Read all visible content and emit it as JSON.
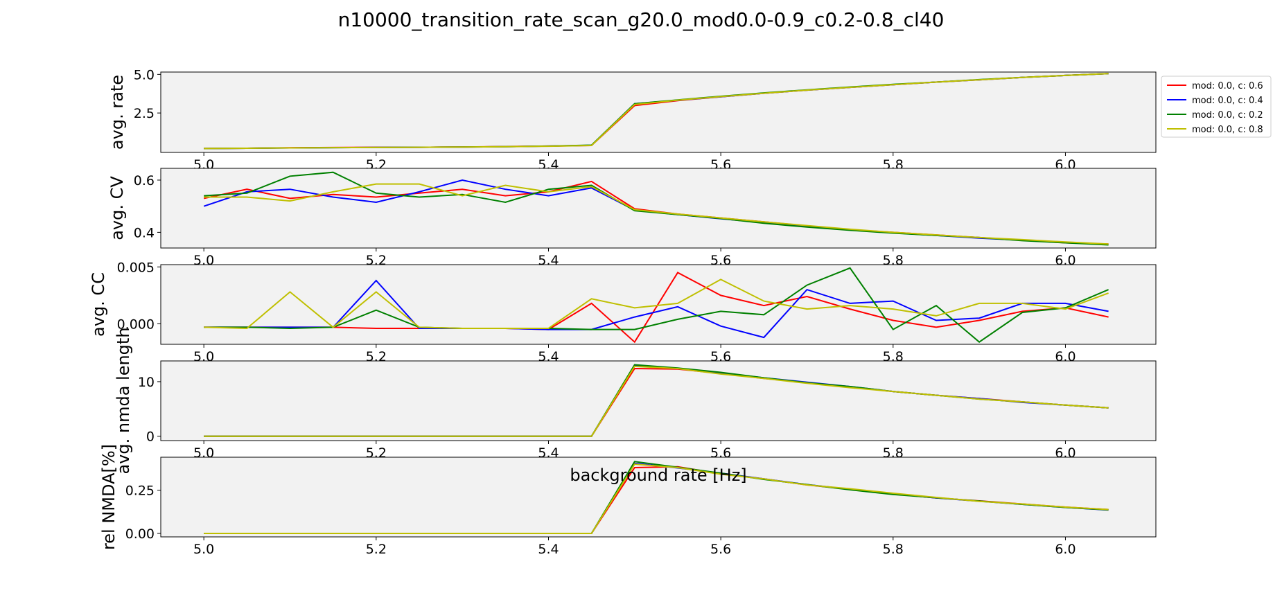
{
  "title": "n10000_transition_rate_scan_g20.0_mod0.0-0.9_c0.2-0.8_cl40",
  "legend": {
    "entries": [
      {
        "label": "mod: 0.0, c: 0.6",
        "color": "#ff0000"
      },
      {
        "label": "mod: 0.0, c: 0.4",
        "color": "#0000ff"
      },
      {
        "label": "mod: 0.0, c: 0.2",
        "color": "#008000"
      },
      {
        "label": "mod: 0.0, c: 0.8",
        "color": "#bfbf00"
      }
    ]
  },
  "chart_data": {
    "type": "line",
    "xlabel": "background rate [Hz]",
    "x": [
      5.0,
      5.05,
      5.1,
      5.15,
      5.2,
      5.25,
      5.3,
      5.35,
      5.4,
      5.45,
      5.5,
      5.55,
      5.6,
      5.65,
      5.7,
      5.75,
      5.8,
      5.85,
      5.9,
      5.95,
      6.0,
      6.05
    ],
    "xlim": [
      4.95,
      6.105
    ],
    "xticks": [
      5.0,
      5.2,
      5.4,
      5.6,
      5.8,
      6.0
    ],
    "xtick_labels": [
      "5.0",
      "5.2",
      "5.4",
      "5.6",
      "5.8",
      "6.0"
    ],
    "plot_background": "#f2f2f2",
    "panels": [
      {
        "ylabel": "avg. rate",
        "ylim": [
          -0.05,
          5.15
        ],
        "yticks": [
          2.5,
          5.0
        ],
        "ytick_labels": [
          "2.5",
          "5.0"
        ],
        "series": [
          {
            "name": "mod: 0.0, c: 0.6",
            "color": "#ff0000",
            "values": [
              0.2,
              0.22,
              0.25,
              0.27,
              0.28,
              0.28,
              0.3,
              0.33,
              0.36,
              0.4,
              2.98,
              3.3,
              3.55,
              3.78,
              3.98,
              4.16,
              4.33,
              4.5,
              4.65,
              4.8,
              4.93,
              5.05
            ]
          },
          {
            "name": "mod: 0.0, c: 0.4",
            "color": "#0000ff",
            "values": [
              0.2,
              0.22,
              0.24,
              0.26,
              0.27,
              0.28,
              0.3,
              0.32,
              0.36,
              0.41,
              3.1,
              3.32,
              3.55,
              3.78,
              3.98,
              4.16,
              4.33,
              4.5,
              4.65,
              4.8,
              4.93,
              5.05
            ]
          },
          {
            "name": "mod: 0.0, c: 0.2",
            "color": "#008000",
            "values": [
              0.2,
              0.22,
              0.24,
              0.26,
              0.27,
              0.28,
              0.3,
              0.32,
              0.36,
              0.42,
              3.1,
              3.35,
              3.58,
              3.8,
              4.0,
              4.18,
              4.35,
              4.5,
              4.66,
              4.8,
              4.93,
              5.05
            ]
          },
          {
            "name": "mod: 0.0, c: 0.8",
            "color": "#bfbf00",
            "values": [
              0.2,
              0.22,
              0.24,
              0.26,
              0.27,
              0.28,
              0.3,
              0.32,
              0.35,
              0.4,
              3.05,
              3.33,
              3.56,
              3.78,
              3.98,
              4.16,
              4.33,
              4.5,
              4.65,
              4.8,
              4.93,
              5.05
            ]
          }
        ]
      },
      {
        "ylabel": "avg. CV",
        "ylim": [
          0.34,
          0.645
        ],
        "yticks": [
          0.4,
          0.6
        ],
        "ytick_labels": [
          "0.4",
          "0.6"
        ],
        "series": [
          {
            "name": "mod: 0.0, c: 0.6",
            "color": "#ff0000",
            "values": [
              0.53,
              0.565,
              0.53,
              0.545,
              0.535,
              0.55,
              0.565,
              0.54,
              0.555,
              0.595,
              0.49,
              0.47,
              0.455,
              0.44,
              0.425,
              0.41,
              0.4,
              0.39,
              0.38,
              0.37,
              0.36,
              0.355
            ]
          },
          {
            "name": "mod: 0.0, c: 0.4",
            "color": "#0000ff",
            "values": [
              0.5,
              0.555,
              0.565,
              0.535,
              0.515,
              0.555,
              0.6,
              0.565,
              0.54,
              0.57,
              0.485,
              0.468,
              0.452,
              0.437,
              0.423,
              0.41,
              0.398,
              0.388,
              0.378,
              0.37,
              0.362,
              0.353
            ]
          },
          {
            "name": "mod: 0.0, c: 0.2",
            "color": "#008000",
            "values": [
              0.54,
              0.55,
              0.615,
              0.63,
              0.55,
              0.535,
              0.545,
              0.515,
              0.565,
              0.58,
              0.483,
              0.468,
              0.453,
              0.435,
              0.42,
              0.408,
              0.397,
              0.388,
              0.38,
              0.368,
              0.36,
              0.352
            ]
          },
          {
            "name": "mod: 0.0, c: 0.8",
            "color": "#bfbf00",
            "values": [
              0.535,
              0.535,
              0.52,
              0.555,
              0.585,
              0.585,
              0.54,
              0.58,
              0.555,
              0.575,
              0.487,
              0.47,
              0.455,
              0.44,
              0.426,
              0.412,
              0.4,
              0.39,
              0.38,
              0.372,
              0.363,
              0.355
            ]
          }
        ]
      },
      {
        "ylabel": "avg. CC",
        "ylim": [
          -0.0018,
          0.0052
        ],
        "yticks": [
          0.0,
          0.005
        ],
        "ytick_labels": [
          "0.000",
          "0.005"
        ],
        "series": [
          {
            "name": "mod: 0.0, c: 0.6",
            "color": "#ff0000",
            "values": [
              -0.0003,
              -0.0003,
              -0.0003,
              -0.0003,
              -0.0004,
              -0.0004,
              -0.0004,
              -0.0004,
              -0.0005,
              0.0018,
              -0.0016,
              0.0045,
              0.0025,
              0.0016,
              0.0024,
              0.0013,
              0.0003,
              -0.0003,
              0.0003,
              0.0011,
              0.0014,
              0.0006
            ]
          },
          {
            "name": "mod: 0.0, c: 0.4",
            "color": "#0000ff",
            "values": [
              -0.0003,
              -0.0003,
              -0.0003,
              -0.0003,
              0.0038,
              -0.0004,
              -0.0004,
              -0.0004,
              -0.0005,
              -0.0005,
              0.0006,
              0.0015,
              -0.0002,
              -0.0012,
              0.003,
              0.0018,
              0.002,
              0.0003,
              0.0005,
              0.0018,
              0.0018,
              0.0011
            ]
          },
          {
            "name": "mod: 0.0, c: 0.2",
            "color": "#008000",
            "values": [
              -0.0003,
              -0.0003,
              -0.0004,
              -0.0003,
              0.0012,
              -0.0003,
              -0.0004,
              -0.0004,
              -0.0004,
              -0.0005,
              -0.0005,
              0.0004,
              0.0011,
              0.0008,
              0.0034,
              0.0049,
              -0.0005,
              0.0016,
              -0.0016,
              0.001,
              0.0014,
              0.003
            ]
          },
          {
            "name": "mod: 0.0, c: 0.8",
            "color": "#bfbf00",
            "values": [
              -0.0003,
              -0.0004,
              0.0028,
              -0.0003,
              0.0028,
              -0.0003,
              -0.0004,
              -0.0004,
              -0.0004,
              0.0022,
              0.0014,
              0.0018,
              0.0039,
              0.002,
              0.0013,
              0.0016,
              0.0013,
              0.0007,
              0.0018,
              0.0018,
              0.0013,
              0.0027
            ]
          }
        ]
      },
      {
        "ylabel": "avg. nmda length",
        "ylim": [
          -0.8,
          13.8
        ],
        "yticks": [
          0,
          10
        ],
        "ytick_labels": [
          "0",
          "10"
        ],
        "series": [
          {
            "name": "mod: 0.0, c: 0.6",
            "color": "#ff0000",
            "values": [
              0,
              0,
              0,
              0,
              0,
              0,
              0,
              0,
              0,
              0,
              12.4,
              12.3,
              11.5,
              10.6,
              9.8,
              9.0,
              8.2,
              7.5,
              6.9,
              6.3,
              5.7,
              5.2
            ]
          },
          {
            "name": "mod: 0.0, c: 0.4",
            "color": "#0000ff",
            "values": [
              0,
              0,
              0,
              0,
              0,
              0,
              0,
              0,
              0,
              0,
              13.0,
              12.4,
              11.6,
              10.7,
              9.9,
              9.1,
              8.2,
              7.5,
              6.9,
              6.2,
              5.7,
              5.2
            ]
          },
          {
            "name": "mod: 0.0, c: 0.2",
            "color": "#008000",
            "values": [
              0,
              0,
              0,
              0,
              0,
              0,
              0,
              0,
              0,
              0,
              13.1,
              12.5,
              11.7,
              10.7,
              9.8,
              9.1,
              8.2,
              7.5,
              6.8,
              6.3,
              5.7,
              5.2
            ]
          },
          {
            "name": "mod: 0.0, c: 0.8",
            "color": "#bfbf00",
            "values": [
              0,
              0,
              0,
              0,
              0,
              0,
              0,
              0,
              0,
              0,
              12.8,
              12.4,
              11.4,
              10.6,
              9.7,
              8.9,
              8.2,
              7.5,
              6.8,
              6.3,
              5.7,
              5.2
            ]
          }
        ]
      },
      {
        "ylabel": "rel NMDA[%]",
        "ylim": [
          -0.02,
          0.44
        ],
        "yticks": [
          0.0,
          0.25
        ],
        "ytick_labels": [
          "0.00",
          "0.25"
        ],
        "series": [
          {
            "name": "mod: 0.0, c: 0.6",
            "color": "#ff0000",
            "values": [
              0,
              0,
              0,
              0,
              0,
              0,
              0,
              0,
              0,
              0,
              0.38,
              0.385,
              0.345,
              0.315,
              0.28,
              0.255,
              0.228,
              0.205,
              0.188,
              0.17,
              0.152,
              0.138
            ]
          },
          {
            "name": "mod: 0.0, c: 0.4",
            "color": "#0000ff",
            "values": [
              0,
              0,
              0,
              0,
              0,
              0,
              0,
              0,
              0,
              0,
              0.405,
              0.378,
              0.348,
              0.315,
              0.282,
              0.255,
              0.228,
              0.205,
              0.186,
              0.168,
              0.15,
              0.135
            ]
          },
          {
            "name": "mod: 0.0, c: 0.2",
            "color": "#008000",
            "values": [
              0,
              0,
              0,
              0,
              0,
              0,
              0,
              0,
              0,
              0,
              0.415,
              0.382,
              0.348,
              0.312,
              0.282,
              0.252,
              0.225,
              0.206,
              0.187,
              0.168,
              0.15,
              0.136
            ]
          },
          {
            "name": "mod: 0.0, c: 0.8",
            "color": "#bfbf00",
            "values": [
              0,
              0,
              0,
              0,
              0,
              0,
              0,
              0,
              0,
              0,
              0.4,
              0.38,
              0.342,
              0.315,
              0.28,
              0.258,
              0.232,
              0.208,
              0.185,
              0.17,
              0.152,
              0.138
            ]
          }
        ]
      }
    ]
  }
}
